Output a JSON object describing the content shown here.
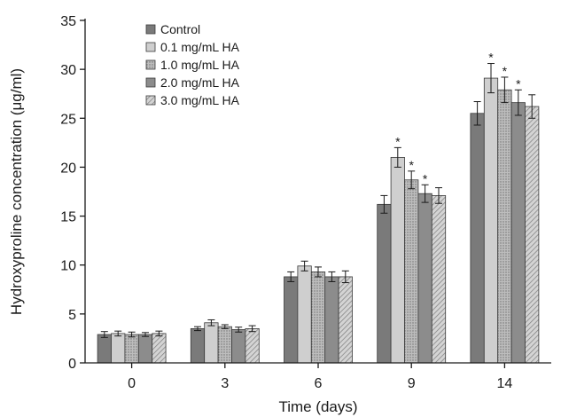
{
  "chart_data": {
    "type": "bar",
    "xlabel": "Time (days)",
    "ylabel": "Hydroxyproline concentration (μg/ml)",
    "ylim": [
      0,
      35
    ],
    "yticks": [
      "0",
      "5",
      "10",
      "15",
      "20",
      "25",
      "30",
      "35"
    ],
    "categories": [
      "0",
      "3",
      "6",
      "9",
      "14"
    ],
    "legend_position": "top-left",
    "grid": false,
    "significance_marker": "*",
    "series": [
      {
        "name": "Control",
        "color": "#7a7a7a",
        "pattern": "solid",
        "values": [
          2.9,
          3.5,
          8.8,
          16.2,
          25.5
        ],
        "errors": [
          0.3,
          0.2,
          0.5,
          0.9,
          1.2
        ],
        "significant": [
          false,
          false,
          false,
          false,
          false
        ]
      },
      {
        "name": "0.1 mg/mL HA",
        "color": "#cfcfcf",
        "pattern": "solid",
        "values": [
          3.0,
          4.1,
          9.9,
          21.0,
          29.1
        ],
        "errors": [
          0.25,
          0.3,
          0.5,
          1.0,
          1.5
        ],
        "significant": [
          false,
          false,
          false,
          true,
          true
        ]
      },
      {
        "name": "1.0 mg/mL HA",
        "color": "#a8a8a8",
        "pattern": "stipple",
        "values": [
          2.9,
          3.7,
          9.3,
          18.7,
          27.9
        ],
        "errors": [
          0.25,
          0.2,
          0.5,
          0.9,
          1.3
        ],
        "significant": [
          false,
          false,
          false,
          true,
          true
        ]
      },
      {
        "name": "2.0 mg/mL HA",
        "color": "#8c8c8c",
        "pattern": "solid",
        "values": [
          2.9,
          3.4,
          8.8,
          17.3,
          26.6
        ],
        "errors": [
          0.2,
          0.25,
          0.5,
          0.9,
          1.3
        ],
        "significant": [
          false,
          false,
          false,
          true,
          true
        ]
      },
      {
        "name": "3.0 mg/mL HA",
        "color": "#c4c4c4",
        "pattern": "hatch",
        "values": [
          3.0,
          3.5,
          8.8,
          17.1,
          26.2
        ],
        "errors": [
          0.25,
          0.3,
          0.6,
          0.8,
          1.2
        ],
        "significant": [
          false,
          false,
          false,
          false,
          false
        ]
      }
    ]
  }
}
